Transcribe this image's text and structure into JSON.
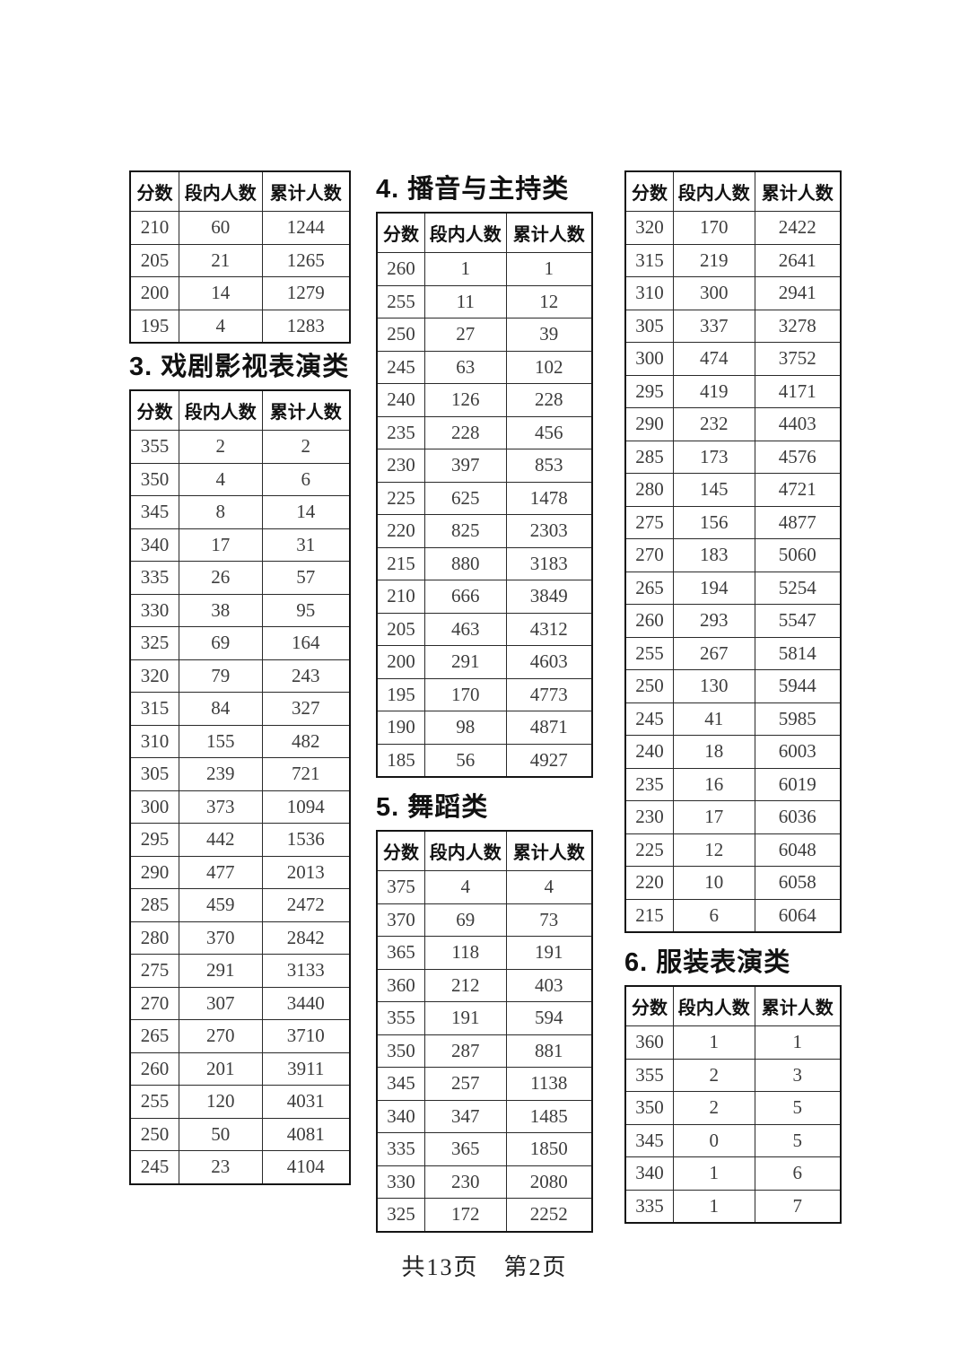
{
  "footer": {
    "text": "共13页　第2页"
  },
  "tables": [
    {
      "key": "section2-continued",
      "section_title": "",
      "columns": [
        "分数",
        "段内人数",
        "累计人数"
      ],
      "rows": [
        [
          "210",
          "60",
          "1244"
        ],
        [
          "205",
          "21",
          "1265"
        ],
        [
          "200",
          "14",
          "1279"
        ],
        [
          "195",
          "4",
          "1283"
        ]
      ]
    },
    {
      "key": "section3",
      "section_title": "3. 戏剧影视表演类",
      "columns": [
        "分数",
        "段内人数",
        "累计人数"
      ],
      "rows": [
        [
          "355",
          "2",
          "2"
        ],
        [
          "350",
          "4",
          "6"
        ],
        [
          "345",
          "8",
          "14"
        ],
        [
          "340",
          "17",
          "31"
        ],
        [
          "335",
          "26",
          "57"
        ],
        [
          "330",
          "38",
          "95"
        ],
        [
          "325",
          "69",
          "164"
        ],
        [
          "320",
          "79",
          "243"
        ],
        [
          "315",
          "84",
          "327"
        ],
        [
          "310",
          "155",
          "482"
        ],
        [
          "305",
          "239",
          "721"
        ],
        [
          "300",
          "373",
          "1094"
        ],
        [
          "295",
          "442",
          "1536"
        ],
        [
          "290",
          "477",
          "2013"
        ],
        [
          "285",
          "459",
          "2472"
        ],
        [
          "280",
          "370",
          "2842"
        ],
        [
          "275",
          "291",
          "3133"
        ],
        [
          "270",
          "307",
          "3440"
        ],
        [
          "265",
          "270",
          "3710"
        ],
        [
          "260",
          "201",
          "3911"
        ],
        [
          "255",
          "120",
          "4031"
        ],
        [
          "250",
          "50",
          "4081"
        ],
        [
          "245",
          "23",
          "4104"
        ]
      ]
    },
    {
      "key": "section4",
      "section_title": "4. 播音与主持类",
      "columns": [
        "分数",
        "段内人数",
        "累计人数"
      ],
      "rows": [
        [
          "260",
          "1",
          "1"
        ],
        [
          "255",
          "11",
          "12"
        ],
        [
          "250",
          "27",
          "39"
        ],
        [
          "245",
          "63",
          "102"
        ],
        [
          "240",
          "126",
          "228"
        ],
        [
          "235",
          "228",
          "456"
        ],
        [
          "230",
          "397",
          "853"
        ],
        [
          "225",
          "625",
          "1478"
        ],
        [
          "220",
          "825",
          "2303"
        ],
        [
          "215",
          "880",
          "3183"
        ],
        [
          "210",
          "666",
          "3849"
        ],
        [
          "205",
          "463",
          "4312"
        ],
        [
          "200",
          "291",
          "4603"
        ],
        [
          "195",
          "170",
          "4773"
        ],
        [
          "190",
          "98",
          "4871"
        ],
        [
          "185",
          "56",
          "4927"
        ]
      ]
    },
    {
      "key": "section5",
      "section_title": "5. 舞蹈类",
      "columns": [
        "分数",
        "段内人数",
        "累计人数"
      ],
      "rows": [
        [
          "375",
          "4",
          "4"
        ],
        [
          "370",
          "69",
          "73"
        ],
        [
          "365",
          "118",
          "191"
        ],
        [
          "360",
          "212",
          "403"
        ],
        [
          "355",
          "191",
          "594"
        ],
        [
          "350",
          "287",
          "881"
        ],
        [
          "345",
          "257",
          "1138"
        ],
        [
          "340",
          "347",
          "1485"
        ],
        [
          "335",
          "365",
          "1850"
        ],
        [
          "330",
          "230",
          "2080"
        ],
        [
          "325",
          "172",
          "2252"
        ]
      ]
    },
    {
      "key": "section5-continued",
      "section_title": "",
      "columns": [
        "分数",
        "段内人数",
        "累计人数"
      ],
      "rows": [
        [
          "320",
          "170",
          "2422"
        ],
        [
          "315",
          "219",
          "2641"
        ],
        [
          "310",
          "300",
          "2941"
        ],
        [
          "305",
          "337",
          "3278"
        ],
        [
          "300",
          "474",
          "3752"
        ],
        [
          "295",
          "419",
          "4171"
        ],
        [
          "290",
          "232",
          "4403"
        ],
        [
          "285",
          "173",
          "4576"
        ],
        [
          "280",
          "145",
          "4721"
        ],
        [
          "275",
          "156",
          "4877"
        ],
        [
          "270",
          "183",
          "5060"
        ],
        [
          "265",
          "194",
          "5254"
        ],
        [
          "260",
          "293",
          "5547"
        ],
        [
          "255",
          "267",
          "5814"
        ],
        [
          "250",
          "130",
          "5944"
        ],
        [
          "245",
          "41",
          "5985"
        ],
        [
          "240",
          "18",
          "6003"
        ],
        [
          "235",
          "16",
          "6019"
        ],
        [
          "230",
          "17",
          "6036"
        ],
        [
          "225",
          "12",
          "6048"
        ],
        [
          "220",
          "10",
          "6058"
        ],
        [
          "215",
          "6",
          "6064"
        ]
      ]
    },
    {
      "key": "section6",
      "section_title": "6. 服装表演类",
      "columns": [
        "分数",
        "段内人数",
        "累计人数"
      ],
      "rows": [
        [
          "360",
          "1",
          "1"
        ],
        [
          "355",
          "2",
          "3"
        ],
        [
          "350",
          "2",
          "5"
        ],
        [
          "345",
          "0",
          "5"
        ],
        [
          "340",
          "1",
          "6"
        ],
        [
          "335",
          "1",
          "7"
        ]
      ]
    }
  ]
}
